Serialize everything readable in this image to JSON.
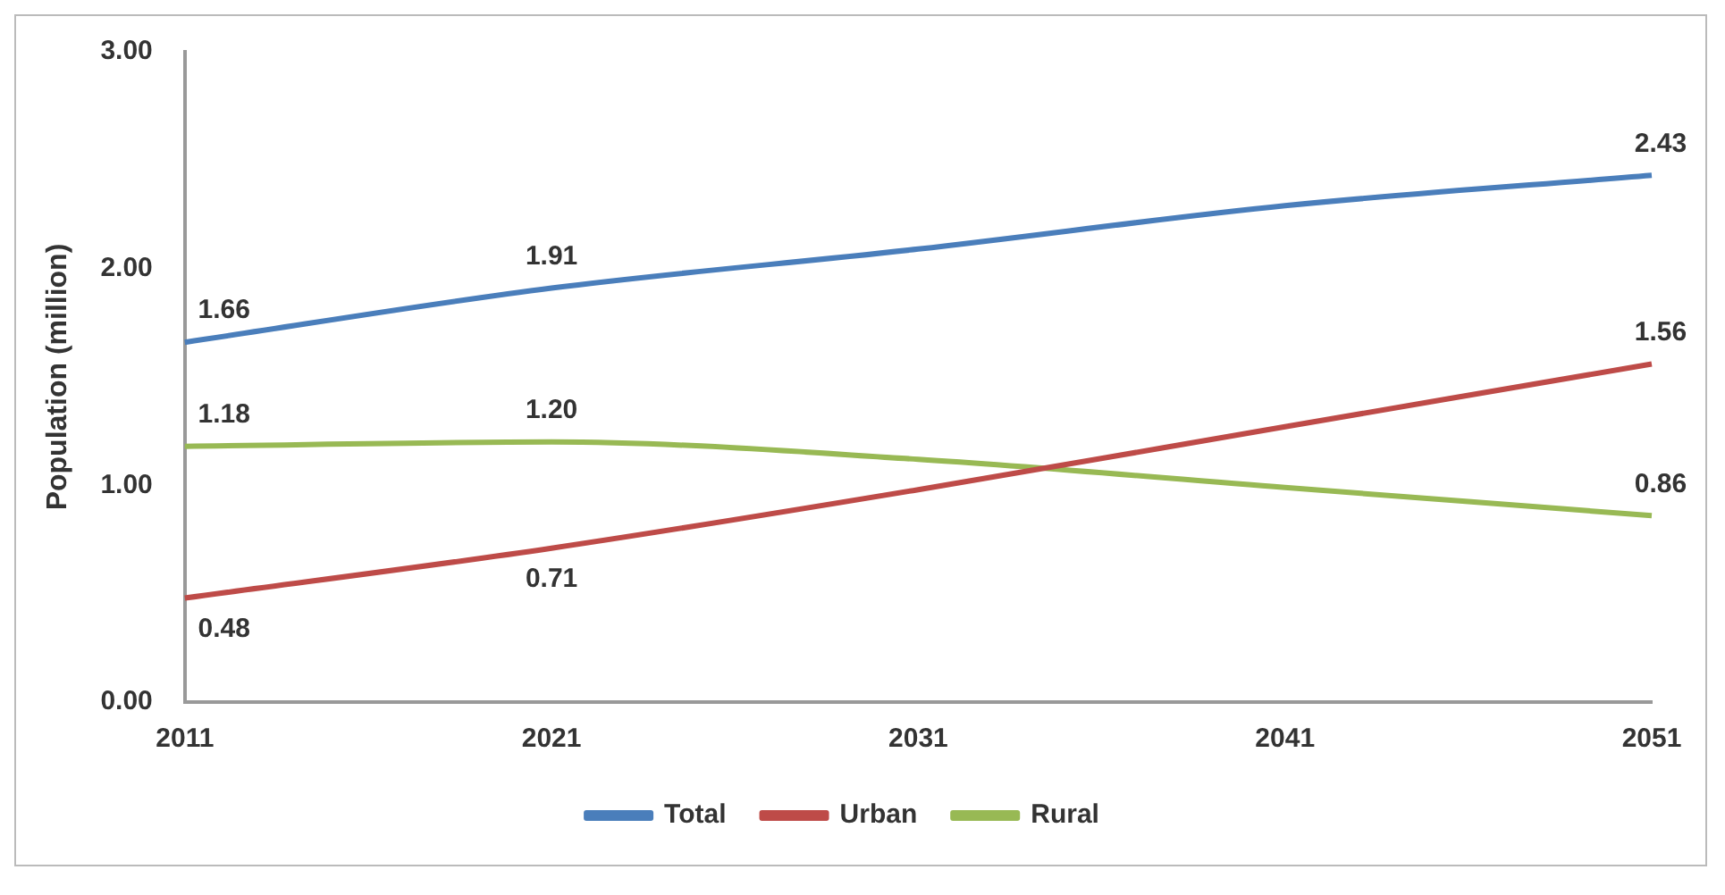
{
  "chart_data": {
    "type": "line",
    "ylabel": "Population (million)",
    "categories": [
      "2011",
      "2021",
      "2031",
      "2041",
      "2051"
    ],
    "series": [
      {
        "name": "Total",
        "color": "#4a7ebb",
        "values": [
          1.66,
          1.91,
          2.09,
          2.29,
          2.43
        ],
        "value_labels": [
          "1.66",
          "1.91",
          null,
          null,
          "2.43"
        ]
      },
      {
        "name": "Urban",
        "color": "#be4b48",
        "values": [
          0.48,
          0.71,
          0.98,
          1.27,
          1.56
        ],
        "value_labels": [
          "0.48",
          "0.71",
          null,
          null,
          "1.56"
        ]
      },
      {
        "name": "Rural",
        "color": "#98b954",
        "values": [
          1.18,
          1.2,
          1.12,
          0.99,
          0.86
        ],
        "value_labels": [
          "1.18",
          "1.20",
          null,
          null,
          "0.86"
        ]
      }
    ],
    "ylim": [
      0,
      3
    ],
    "yticks": [
      {
        "value": 0,
        "label": "0.00"
      },
      {
        "value": 1,
        "label": "1.00"
      },
      {
        "value": 2,
        "label": "2.00"
      },
      {
        "value": 3,
        "label": "3.00"
      }
    ],
    "grid": false,
    "legend": "bottom",
    "marker": "none",
    "line_style": "solid"
  }
}
